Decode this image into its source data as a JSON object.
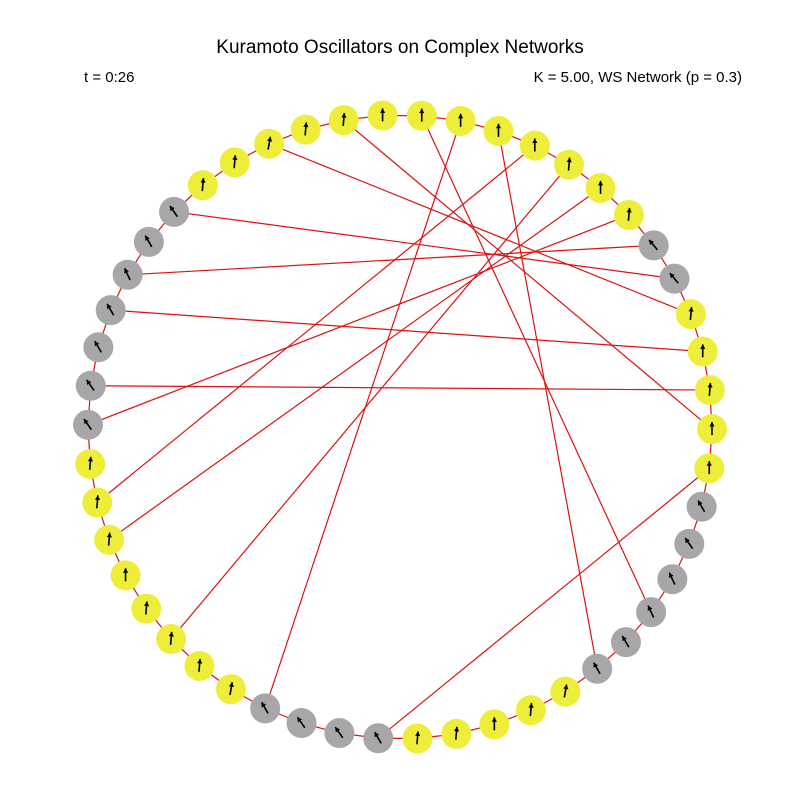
{
  "title": "Kuramoto Oscillators on Complex Networks",
  "time_label": "t = 0:26",
  "params_label": "K = 5.00, WS Network (p = 0.3)",
  "colors": {
    "in_sync": "#eeee3a",
    "out_of_sync": "#a8a6a8",
    "edge": "#dd1111",
    "arrow": "#000000"
  },
  "network": {
    "node_count": 50,
    "nodes": [
      {
        "state": "in_sync",
        "angle_deg": 0
      },
      {
        "state": "in_sync",
        "angle_deg": 0
      },
      {
        "state": "in_sync",
        "angle_deg": 0
      },
      {
        "state": "in_sync",
        "angle_deg": 0
      },
      {
        "state": "in_sync",
        "angle_deg": 5
      },
      {
        "state": "in_sync",
        "angle_deg": 0
      },
      {
        "state": "in_sync",
        "angle_deg": 5
      },
      {
        "state": "out_of_sync",
        "angle_deg": -40
      },
      {
        "state": "out_of_sync",
        "angle_deg": -40
      },
      {
        "state": "in_sync",
        "angle_deg": 5
      },
      {
        "state": "in_sync",
        "angle_deg": 0
      },
      {
        "state": "in_sync",
        "angle_deg": 5
      },
      {
        "state": "in_sync",
        "angle_deg": 0
      },
      {
        "state": "in_sync",
        "angle_deg": 0
      },
      {
        "state": "out_of_sync",
        "angle_deg": -30
      },
      {
        "state": "out_of_sync",
        "angle_deg": -35
      },
      {
        "state": "out_of_sync",
        "angle_deg": -25
      },
      {
        "state": "out_of_sync",
        "angle_deg": -25
      },
      {
        "state": "out_of_sync",
        "angle_deg": -30
      },
      {
        "state": "out_of_sync",
        "angle_deg": -30
      },
      {
        "state": "in_sync",
        "angle_deg": 10
      },
      {
        "state": "in_sync",
        "angle_deg": 5
      },
      {
        "state": "in_sync",
        "angle_deg": 0
      },
      {
        "state": "in_sync",
        "angle_deg": 5
      },
      {
        "state": "in_sync",
        "angle_deg": 5
      },
      {
        "state": "out_of_sync",
        "angle_deg": -30
      },
      {
        "state": "out_of_sync",
        "angle_deg": -35
      },
      {
        "state": "out_of_sync",
        "angle_deg": -35
      },
      {
        "state": "out_of_sync",
        "angle_deg": -30
      },
      {
        "state": "in_sync",
        "angle_deg": 10
      },
      {
        "state": "in_sync",
        "angle_deg": 5
      },
      {
        "state": "in_sync",
        "angle_deg": 5
      },
      {
        "state": "in_sync",
        "angle_deg": 5
      },
      {
        "state": "in_sync",
        "angle_deg": 0
      },
      {
        "state": "in_sync",
        "angle_deg": 5
      },
      {
        "state": "in_sync",
        "angle_deg": 5
      },
      {
        "state": "in_sync",
        "angle_deg": 5
      },
      {
        "state": "out_of_sync",
        "angle_deg": -35
      },
      {
        "state": "out_of_sync",
        "angle_deg": -35
      },
      {
        "state": "out_of_sync",
        "angle_deg": -30
      },
      {
        "state": "out_of_sync",
        "angle_deg": -30
      },
      {
        "state": "out_of_sync",
        "angle_deg": -25
      },
      {
        "state": "out_of_sync",
        "angle_deg": -30
      },
      {
        "state": "out_of_sync",
        "angle_deg": -35
      },
      {
        "state": "in_sync",
        "angle_deg": 5
      },
      {
        "state": "in_sync",
        "angle_deg": 5
      },
      {
        "state": "in_sync",
        "angle_deg": 10
      },
      {
        "state": "in_sync",
        "angle_deg": 5
      },
      {
        "state": "in_sync",
        "angle_deg": 5
      },
      {
        "state": "in_sync",
        "angle_deg": 0
      }
    ],
    "long_range_edges": [
      [
        0,
        17
      ],
      [
        1,
        28
      ],
      [
        2,
        19
      ],
      [
        3,
        35
      ],
      [
        4,
        31
      ],
      [
        5,
        34
      ],
      [
        6,
        37
      ],
      [
        7,
        41
      ],
      [
        8,
        43
      ],
      [
        9,
        46
      ],
      [
        10,
        40
      ],
      [
        11,
        38
      ],
      [
        12,
        48
      ],
      [
        13,
        25
      ]
    ]
  }
}
